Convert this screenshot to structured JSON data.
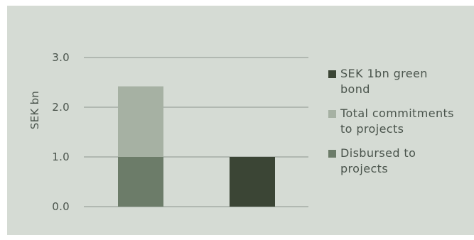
{
  "colors": {
    "panel_bg": "#d5dbd4",
    "grid": "#8d958e",
    "text": "#4a544c"
  },
  "chart_data": {
    "type": "bar",
    "stacked": true,
    "categories": [
      "",
      ""
    ],
    "ylabel": "SEK bn",
    "ylim": [
      0,
      3
    ],
    "yticks": [
      0,
      1,
      2,
      3
    ],
    "ytick_labels": [
      "0.0",
      "1.0",
      "2.0",
      "3.0"
    ],
    "grid": true,
    "legend_position": "right",
    "series": [
      {
        "name": "Disbursed to\nprojects",
        "color": "#6c7c69",
        "values": [
          1.0,
          0
        ]
      },
      {
        "name": "Total commitments\nto projects",
        "color": "#a6b1a3",
        "values": [
          1.42,
          0
        ]
      },
      {
        "name": "SEK 1bn green\nbond",
        "color": "#3b4535",
        "values": [
          0,
          1.0
        ]
      }
    ],
    "legend_order": [
      2,
      1,
      0
    ]
  }
}
